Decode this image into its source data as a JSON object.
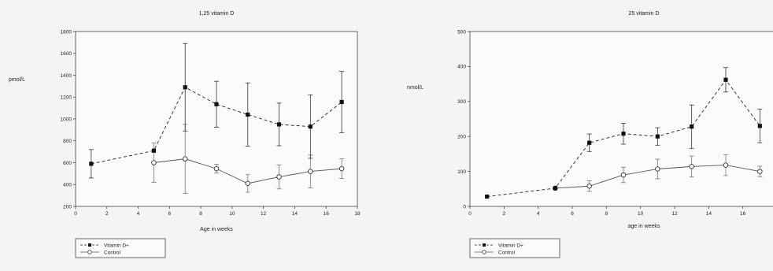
{
  "chart_data": [
    {
      "type": "line",
      "title": "1,25 vitamin D",
      "xlabel": "Age in weeks",
      "ylabel": "pmol/L",
      "xlim": [
        0,
        18
      ],
      "ylim": [
        200,
        1800
      ],
      "xticks": [
        0,
        2,
        4,
        6,
        8,
        10,
        12,
        14,
        16,
        18
      ],
      "yticks": [
        200,
        400,
        600,
        800,
        1000,
        1200,
        1400,
        1600,
        1800
      ],
      "grid": false,
      "legend": "bottom-left",
      "series": [
        {
          "name": "Vitamin D+",
          "marker": "filled-square",
          "line": "dashed",
          "x": [
            1,
            5,
            7,
            9,
            11,
            13,
            15,
            17
          ],
          "y": [
            590,
            710,
            1290,
            1135,
            1040,
            950,
            930,
            1155
          ],
          "err": [
            130,
            0,
            400,
            210,
            290,
            195,
            290,
            280
          ]
        },
        {
          "name": "Control",
          "marker": "open-circle",
          "line": "solid",
          "x": [
            5,
            7,
            9,
            11,
            13,
            15,
            17
          ],
          "y": [
            600,
            635,
            545,
            410,
            470,
            520,
            545
          ],
          "err": [
            180,
            315,
            40,
            80,
            110,
            150,
            90
          ]
        }
      ]
    },
    {
      "type": "line",
      "title": "25 vitamin D",
      "xlabel": "age in weeks",
      "ylabel": "nmol/L",
      "xlim": [
        0,
        18
      ],
      "ylim": [
        0,
        500
      ],
      "xticks": [
        0,
        2,
        4,
        6,
        8,
        10,
        12,
        14,
        16
      ],
      "yticks": [
        0,
        100,
        200,
        300,
        400,
        500
      ],
      "grid": false,
      "legend": "bottom-left",
      "series": [
        {
          "name": "Vitamin D+",
          "marker": "filled-square",
          "line": "dashed",
          "x": [
            1,
            5,
            7,
            9,
            11,
            13,
            15,
            17
          ],
          "y": [
            28,
            52,
            182,
            208,
            200,
            228,
            362,
            230
          ],
          "err": [
            0,
            0,
            25,
            30,
            25,
            62,
            35,
            48
          ]
        },
        {
          "name": "Control",
          "marker": "open-circle",
          "line": "solid",
          "x": [
            5,
            7,
            9,
            11,
            13,
            15,
            17
          ],
          "y": [
            52,
            58,
            90,
            107,
            114,
            118,
            100
          ],
          "err": [
            0,
            15,
            22,
            28,
            30,
            30,
            15
          ]
        }
      ]
    }
  ]
}
